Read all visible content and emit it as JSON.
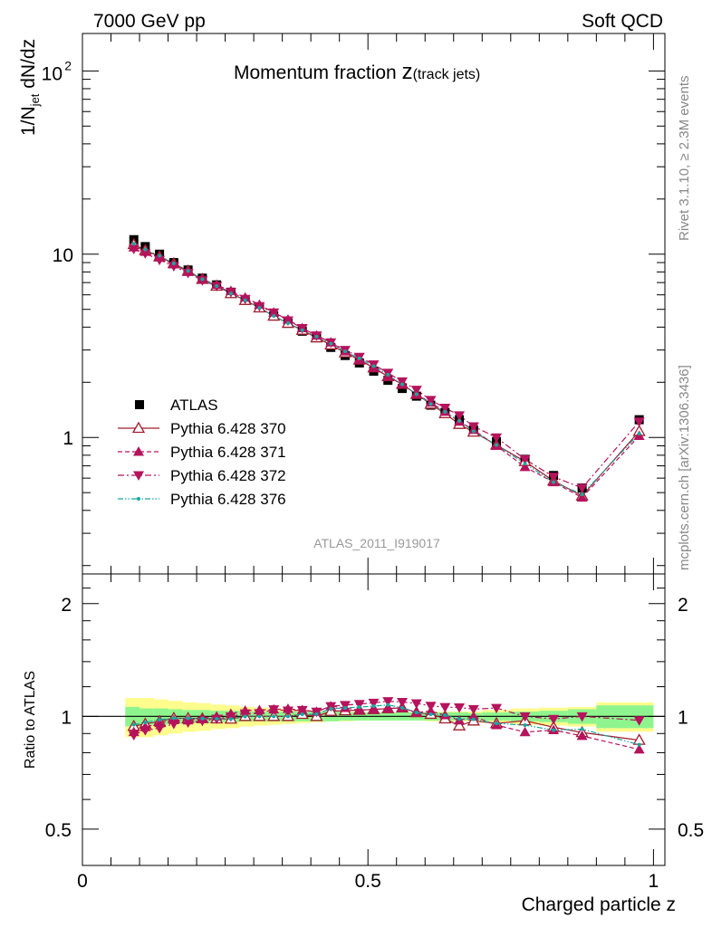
{
  "header": {
    "energy_label": "7000 GeV pp",
    "category_label": "Soft QCD"
  },
  "side_text": {
    "rivet": "Rivet 3.1.10, ≥ 2.3M events",
    "mcplots": "mcplots.cern.ch [arXiv:1306.3436]"
  },
  "chart_data": {
    "type": "line",
    "title_main": "Momentum fraction ",
    "title_var": "z",
    "title_sub": "(track jets)",
    "analysis_id": "ATLAS_2011_I919017",
    "ylabel_main": "1/N",
    "ylabel_sub": "jet",
    "ylabel_tail": " dN/dz",
    "ratio_ylabel": "Ratio to ATLAS",
    "xlabel": "Charged particle z",
    "x_ticks": [
      "0",
      "0.5",
      "1"
    ],
    "y_ticks": [
      "1",
      "10"
    ],
    "y_ticks_exp": [
      "10",
      "2"
    ],
    "ratio_ticks": [
      "0.5",
      "1",
      "2"
    ],
    "xlim": [
      0,
      1.02
    ],
    "ylim": [
      0.18,
      160
    ],
    "ratio_ylim": [
      0.4,
      2.4
    ],
    "y_scale": "log",
    "legend_position": "bottom-left",
    "x": [
      0.09,
      0.11,
      0.135,
      0.16,
      0.185,
      0.21,
      0.235,
      0.26,
      0.285,
      0.31,
      0.335,
      0.36,
      0.385,
      0.41,
      0.435,
      0.46,
      0.485,
      0.51,
      0.535,
      0.56,
      0.585,
      0.61,
      0.635,
      0.66,
      0.685,
      0.725,
      0.775,
      0.825,
      0.875,
      0.975
    ],
    "data": {
      "name": "ATLAS",
      "color": "#000000",
      "values": [
        12.0,
        11.0,
        10.0,
        9.0,
        8.2,
        7.4,
        6.8,
        6.2,
        5.6,
        5.1,
        4.6,
        4.2,
        3.8,
        3.5,
        3.1,
        2.8,
        2.55,
        2.3,
        2.05,
        1.85,
        1.68,
        1.5,
        1.37,
        1.25,
        1.1,
        0.95,
        0.76,
        0.62,
        0.53,
        1.25
      ]
    },
    "series": [
      {
        "name": "Pythia 6.428 370",
        "color": "#a01c2c",
        "style": "solid",
        "marker": "open-triangle-up",
        "values": [
          11.3,
          10.5,
          9.7,
          8.9,
          8.1,
          7.3,
          6.7,
          6.1,
          5.6,
          5.1,
          4.6,
          4.2,
          3.85,
          3.5,
          3.2,
          2.9,
          2.65,
          2.4,
          2.15,
          1.95,
          1.72,
          1.52,
          1.35,
          1.18,
          1.07,
          0.91,
          0.74,
          0.58,
          0.48,
          1.08
        ]
      },
      {
        "name": "Pythia 6.428 371",
        "color": "#b5135c",
        "style": "dashed",
        "marker": "filled-triangle-up",
        "values": [
          10.9,
          10.3,
          9.6,
          8.8,
          8.0,
          7.3,
          6.8,
          6.3,
          5.8,
          5.3,
          4.8,
          4.4,
          3.95,
          3.6,
          3.3,
          2.95,
          2.65,
          2.4,
          2.15,
          1.95,
          1.72,
          1.55,
          1.38,
          1.22,
          1.1,
          0.9,
          0.69,
          0.57,
          0.47,
          1.02
        ]
      },
      {
        "name": "Pythia 6.428 372",
        "color": "#b5135c",
        "style": "dashdot",
        "marker": "filled-triangle-down",
        "values": [
          10.7,
          10.1,
          9.3,
          8.6,
          7.9,
          7.2,
          6.7,
          6.2,
          5.7,
          5.2,
          4.8,
          4.35,
          3.95,
          3.6,
          3.3,
          3.0,
          2.75,
          2.5,
          2.25,
          2.02,
          1.82,
          1.6,
          1.45,
          1.32,
          1.15,
          1.0,
          0.76,
          0.61,
          0.53,
          1.22
        ]
      },
      {
        "name": "Pythia 6.428 376",
        "color": "#1aa7a0",
        "style": "dashdotdot",
        "marker": "small-dot",
        "values": [
          11.4,
          10.6,
          9.8,
          8.9,
          8.1,
          7.3,
          6.7,
          6.1,
          5.6,
          5.1,
          4.6,
          4.2,
          3.85,
          3.55,
          3.25,
          2.95,
          2.7,
          2.45,
          2.2,
          1.95,
          1.72,
          1.52,
          1.38,
          1.23,
          1.08,
          0.91,
          0.72,
          0.57,
          0.49,
          1.05
        ]
      }
    ],
    "ratio_band_inner": [
      0.06,
      0.05,
      0.05,
      0.045,
      0.04,
      0.04,
      0.035,
      0.035,
      0.03,
      0.03,
      0.03,
      0.03,
      0.03,
      0.03,
      0.03,
      0.025,
      0.025,
      0.025,
      0.025,
      0.025,
      0.025,
      0.025,
      0.025,
      0.025,
      0.02,
      0.025,
      0.03,
      0.035,
      0.045,
      0.07
    ],
    "ratio_band_outer": [
      0.12,
      0.12,
      0.11,
      0.1,
      0.09,
      0.085,
      0.075,
      0.07,
      0.06,
      0.055,
      0.05,
      0.045,
      0.04,
      0.035,
      0.03,
      0.03,
      0.025,
      0.025,
      0.025,
      0.025,
      0.025,
      0.03,
      0.03,
      0.03,
      0.03,
      0.04,
      0.05,
      0.055,
      0.06,
      0.09
    ],
    "ratio_bin_edges": [
      0.075,
      0.1,
      0.125,
      0.15,
      0.175,
      0.2,
      0.225,
      0.25,
      0.275,
      0.3,
      0.325,
      0.35,
      0.375,
      0.4,
      0.425,
      0.45,
      0.475,
      0.5,
      0.525,
      0.55,
      0.575,
      0.6,
      0.625,
      0.65,
      0.675,
      0.7,
      0.75,
      0.8,
      0.85,
      0.9,
      1.0
    ]
  }
}
